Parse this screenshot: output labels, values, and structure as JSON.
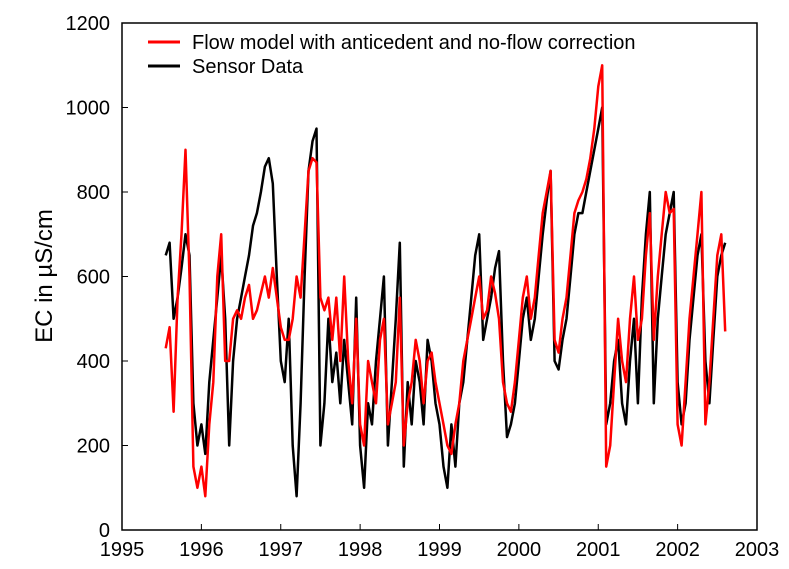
{
  "chart_data": {
    "type": "line",
    "ylabel": "EC in µS/cm",
    "x": [
      1995.55,
      1995.6,
      1995.65,
      1995.7,
      1995.75,
      1995.8,
      1995.85,
      1995.9,
      1995.95,
      1996.0,
      1996.05,
      1996.1,
      1996.15,
      1996.2,
      1996.25,
      1996.3,
      1996.35,
      1996.4,
      1996.45,
      1996.5,
      1996.55,
      1996.6,
      1996.65,
      1996.7,
      1996.75,
      1996.8,
      1996.85,
      1996.9,
      1996.95,
      1997.0,
      1997.05,
      1997.1,
      1997.15,
      1997.2,
      1997.25,
      1997.3,
      1997.35,
      1997.4,
      1997.45,
      1997.5,
      1997.55,
      1997.6,
      1997.65,
      1997.7,
      1997.75,
      1997.8,
      1997.85,
      1997.9,
      1997.95,
      1998.0,
      1998.05,
      1998.1,
      1998.15,
      1998.2,
      1998.25,
      1998.3,
      1998.35,
      1998.4,
      1998.45,
      1998.5,
      1998.55,
      1998.6,
      1998.65,
      1998.7,
      1998.75,
      1998.8,
      1998.85,
      1998.9,
      1998.95,
      1999.0,
      1999.05,
      1999.1,
      1999.15,
      1999.2,
      1999.25,
      1999.3,
      1999.35,
      1999.4,
      1999.45,
      1999.5,
      1999.55,
      1999.6,
      1999.65,
      1999.7,
      1999.75,
      1999.8,
      1999.85,
      1999.9,
      1999.95,
      2000.0,
      2000.05,
      2000.1,
      2000.15,
      2000.2,
      2000.25,
      2000.3,
      2000.35,
      2000.4,
      2000.45,
      2000.5,
      2000.55,
      2000.6,
      2000.65,
      2000.7,
      2000.75,
      2000.8,
      2000.85,
      2000.9,
      2000.95,
      2001.0,
      2001.05,
      2001.1,
      2001.15,
      2001.2,
      2001.25,
      2001.3,
      2001.35,
      2001.4,
      2001.45,
      2001.5,
      2001.55,
      2001.6,
      2001.65,
      2001.7,
      2001.75,
      2001.8,
      2001.85,
      2001.9,
      2001.95,
      2002.0,
      2002.05,
      2002.1,
      2002.15,
      2002.2,
      2002.25,
      2002.3,
      2002.35,
      2002.4,
      2002.45,
      2002.5,
      2002.55,
      2002.6
    ],
    "series": [
      {
        "name": "Flow model with anticedent and no-flow correction",
        "color": "#ff0000",
        "values": [
          430,
          480,
          280,
          550,
          700,
          900,
          600,
          150,
          100,
          150,
          80,
          250,
          350,
          600,
          700,
          400,
          400,
          500,
          520,
          500,
          550,
          580,
          500,
          520,
          560,
          600,
          550,
          620,
          550,
          480,
          450,
          450,
          500,
          600,
          550,
          700,
          850,
          880,
          870,
          550,
          520,
          550,
          450,
          550,
          400,
          600,
          400,
          300,
          500,
          250,
          200,
          400,
          350,
          300,
          450,
          500,
          250,
          300,
          350,
          550,
          200,
          300,
          350,
          450,
          400,
          300,
          400,
          420,
          350,
          300,
          250,
          200,
          180,
          250,
          300,
          400,
          450,
          500,
          550,
          600,
          500,
          520,
          600,
          560,
          500,
          350,
          300,
          280,
          350,
          450,
          550,
          600,
          500,
          550,
          650,
          750,
          800,
          850,
          450,
          420,
          500,
          550,
          650,
          750,
          780,
          800,
          830,
          880,
          950,
          1050,
          1100,
          150,
          200,
          350,
          500,
          400,
          350,
          500,
          600,
          450,
          500,
          650,
          750,
          450,
          600,
          700,
          800,
          750,
          760,
          250,
          200,
          350,
          500,
          600,
          700,
          800,
          250,
          350,
          500,
          650,
          700,
          470
        ]
      },
      {
        "name": "Sensor Data",
        "color": "#000000",
        "values": [
          650,
          680,
          500,
          550,
          620,
          700,
          650,
          300,
          200,
          250,
          180,
          350,
          450,
          550,
          650,
          500,
          200,
          400,
          500,
          550,
          600,
          650,
          720,
          750,
          800,
          860,
          880,
          820,
          600,
          400,
          350,
          500,
          200,
          80,
          300,
          600,
          850,
          920,
          950,
          200,
          300,
          500,
          350,
          420,
          300,
          450,
          350,
          250,
          550,
          200,
          100,
          300,
          250,
          400,
          500,
          600,
          200,
          350,
          500,
          680,
          150,
          350,
          250,
          400,
          350,
          250,
          450,
          400,
          300,
          250,
          150,
          100,
          250,
          150,
          300,
          350,
          450,
          550,
          650,
          700,
          450,
          500,
          550,
          620,
          660,
          400,
          220,
          250,
          300,
          400,
          500,
          550,
          450,
          500,
          600,
          700,
          780,
          850,
          400,
          380,
          450,
          500,
          600,
          700,
          750,
          750,
          800,
          850,
          900,
          950,
          1000,
          250,
          300,
          400,
          450,
          300,
          250,
          400,
          500,
          300,
          550,
          700,
          800,
          300,
          500,
          600,
          700,
          750,
          800,
          350,
          250,
          300,
          450,
          550,
          650,
          700,
          400,
          300,
          450,
          600,
          650,
          680
        ]
      }
    ],
    "xlim": [
      1995,
      2003
    ],
    "xticks": [
      1995,
      1996,
      1997,
      1998,
      1999,
      2000,
      2001,
      2002,
      2003
    ],
    "ylim": [
      0,
      1200
    ],
    "yticks": [
      0,
      200,
      400,
      600,
      800,
      1000,
      1200
    ],
    "legend": "upper left"
  }
}
